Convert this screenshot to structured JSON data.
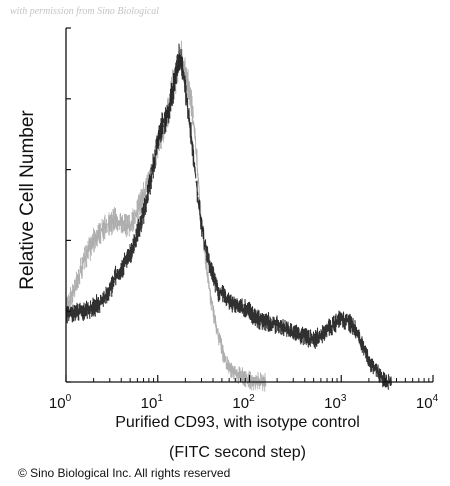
{
  "watermark": "with permission from Sino Biological",
  "copyright": "© Sino Biological Inc. All rights reserved",
  "chart_data": {
    "type": "area",
    "title": "",
    "xlabel_line1": "Purified  CD93, with isotype control",
    "xlabel_line2": "(FITC second step)",
    "ylabel": "Relative Cell Number",
    "xscale": "log",
    "xlim": [
      1,
      10000
    ],
    "ylim": [
      0,
      100
    ],
    "xticks": [
      {
        "base": "10",
        "exp": "0",
        "value": 1
      },
      {
        "base": "10",
        "exp": "1",
        "value": 10
      },
      {
        "base": "10",
        "exp": "2",
        "value": 100
      },
      {
        "base": "10",
        "exp": "3",
        "value": 1000
      },
      {
        "base": "10",
        "exp": "4",
        "value": 10000
      }
    ],
    "grid": false,
    "series": [
      {
        "color": "#9a9a9a",
        "x": [
          1,
          1.3,
          1.6,
          2,
          2.5,
          3,
          3.5,
          4,
          5,
          6,
          7,
          8,
          9,
          10,
          11,
          12,
          13,
          14,
          15,
          16,
          17,
          18,
          19,
          20,
          22,
          24,
          26,
          28,
          30,
          33,
          36,
          40,
          45,
          50,
          55,
          60,
          70,
          80,
          100,
          150
        ],
        "y": [
          21,
          28,
          35,
          40,
          43,
          45,
          46,
          45,
          44,
          48,
          53,
          57,
          62,
          67,
          70,
          73,
          77,
          82,
          85,
          86,
          90,
          92,
          90,
          88,
          82,
          76,
          66,
          55,
          45,
          35,
          27,
          20,
          14,
          9,
          6,
          4,
          2.5,
          1.5,
          0.5,
          0
        ]
      },
      {
        "color": "#1a1a1a",
        "x": [
          1,
          1.3,
          1.6,
          2,
          2.5,
          3,
          3.5,
          4,
          5,
          6,
          7,
          8,
          9,
          10,
          11,
          12,
          13,
          14,
          15,
          16,
          17,
          18,
          19,
          20,
          22,
          24,
          26,
          28,
          30,
          33,
          36,
          40,
          45,
          50,
          60,
          70,
          80,
          100,
          120,
          150,
          200,
          250,
          300,
          400,
          500,
          600,
          700,
          800,
          900,
          1000,
          1200,
          1400,
          1600,
          1800,
          2000,
          2300,
          2600,
          3000,
          3500
        ],
        "y": [
          19,
          20,
          20,
          21,
          23,
          26,
          30,
          32,
          36,
          42,
          48,
          55,
          62,
          68,
          72,
          74,
          76,
          80,
          84,
          88,
          92,
          90,
          86,
          82,
          74,
          66,
          57,
          50,
          44,
          38,
          34,
          30,
          26,
          25,
          23,
          22,
          21,
          20,
          18,
          17,
          16,
          15,
          14,
          13,
          12,
          13,
          15,
          16,
          17,
          18,
          17,
          15,
          12,
          9,
          6,
          4,
          2,
          0.5,
          0
        ]
      }
    ]
  }
}
